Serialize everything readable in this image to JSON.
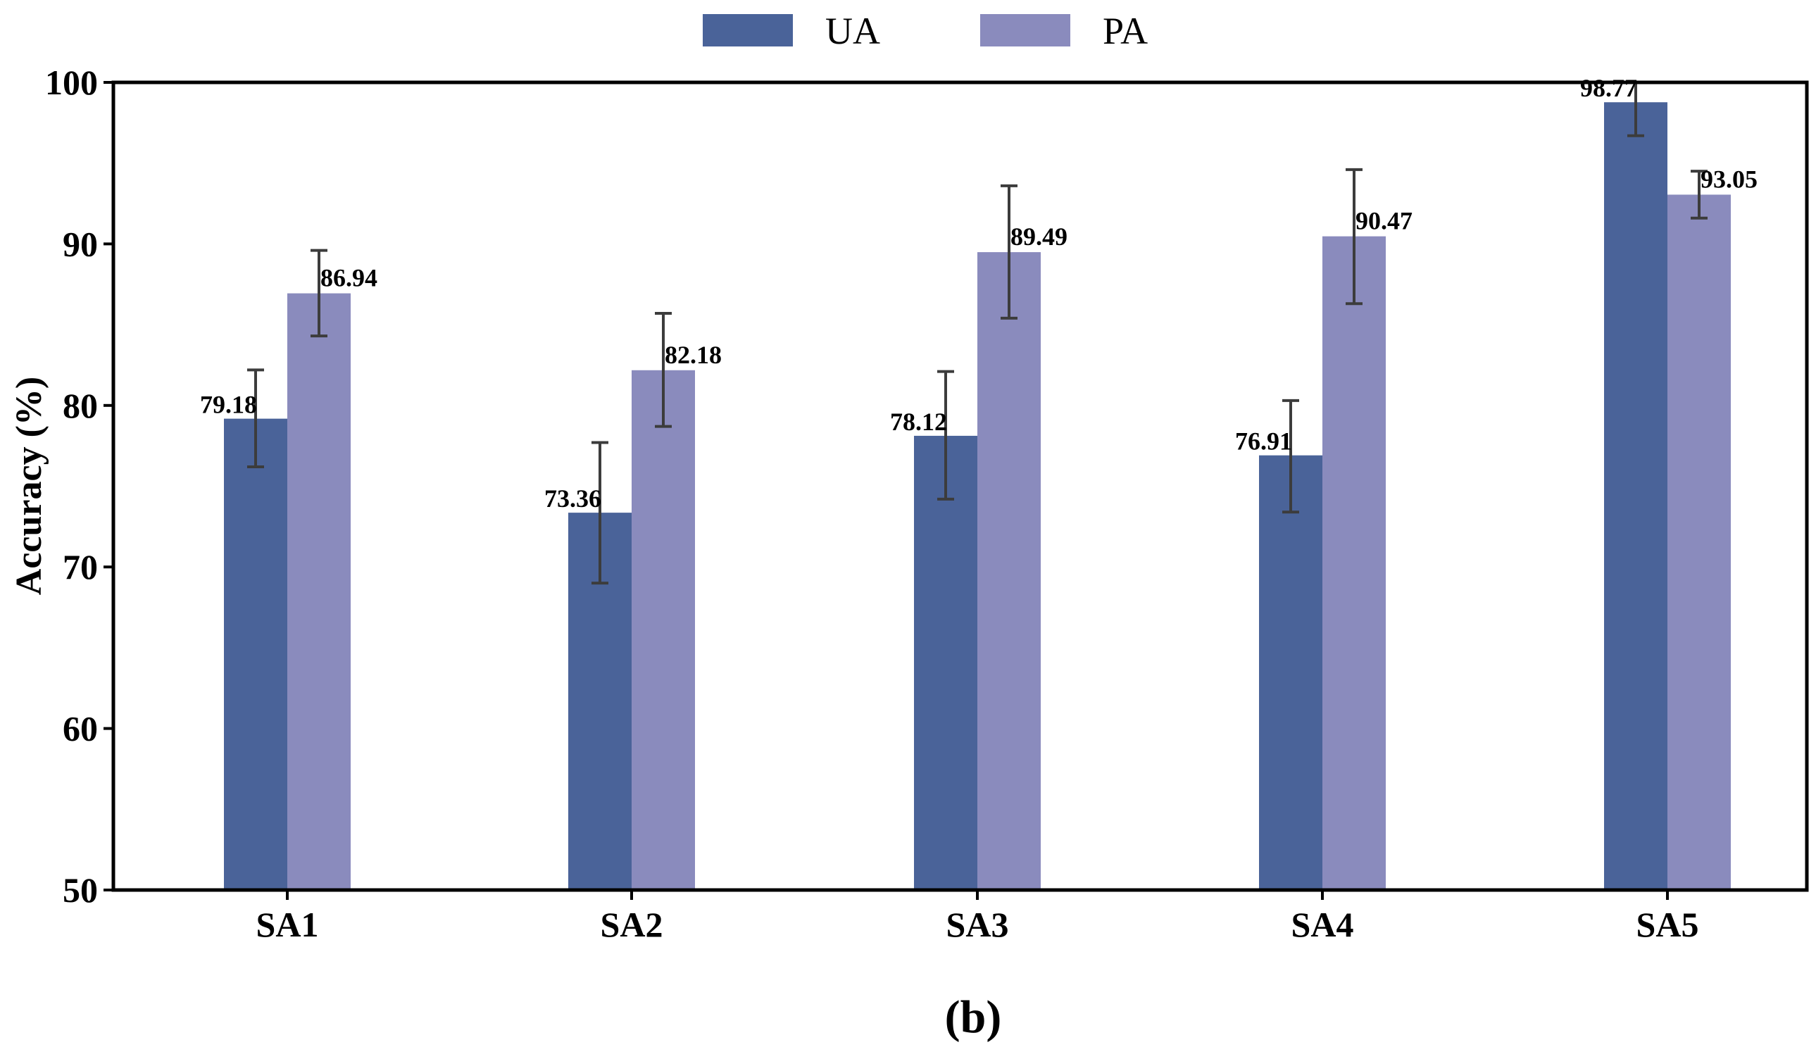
{
  "chart_data": {
    "type": "bar",
    "categories": [
      "SA1",
      "SA2",
      "SA3",
      "SA4",
      "SA5"
    ],
    "series": [
      {
        "name": "UA",
        "color": "#4a6399",
        "values": [
          79.18,
          73.36,
          78.12,
          76.91,
          98.77
        ],
        "value_labels": [
          "79.18",
          "73.36",
          "78.12",
          "76.91",
          "98.77"
        ],
        "error_low": [
          76.2,
          69.0,
          74.2,
          73.4,
          96.7
        ],
        "error_high": [
          82.2,
          77.7,
          82.1,
          80.3,
          100.0
        ]
      },
      {
        "name": "PA",
        "color": "#8a8bbd",
        "values": [
          86.94,
          82.18,
          89.49,
          90.47,
          93.05
        ],
        "value_labels": [
          "86.94",
          "82.18",
          "89.49",
          "90.47",
          "93.05"
        ],
        "error_low": [
          84.3,
          78.7,
          85.4,
          86.3,
          91.6
        ],
        "error_high": [
          89.6,
          85.7,
          93.6,
          94.6,
          94.5
        ]
      }
    ],
    "title": "",
    "xlabel": "",
    "ylabel": "Accuracy (%)",
    "ylim": [
      50,
      100
    ],
    "yticks": [
      "50",
      "60",
      "70",
      "80",
      "90",
      "100"
    ],
    "legend": "top-center",
    "grid": false,
    "panel_label": "(b)",
    "error_bar_color": "#3c3c3c"
  }
}
